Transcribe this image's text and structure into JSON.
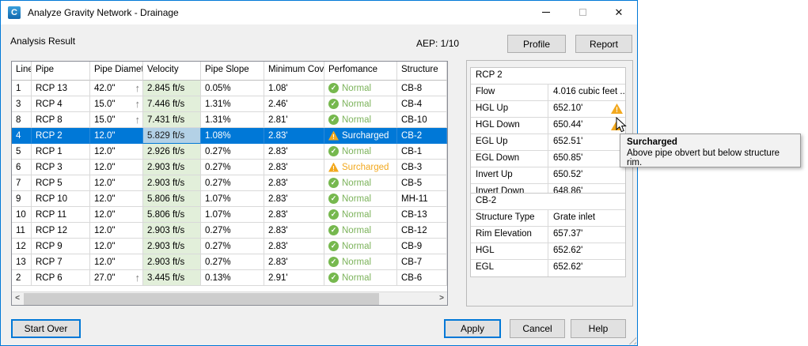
{
  "window": {
    "title": "Analyze Gravity Network - Drainage",
    "icon_letter": "C"
  },
  "header": {
    "analysis_label": "Analysis Result",
    "aep_label": "AEP: 1/10",
    "profile_button": "Profile",
    "report_button": "Report"
  },
  "table": {
    "columns": [
      "Line",
      "Pipe",
      "Pipe Diameter",
      "Velocity",
      "Pipe Slope",
      "Minimum Cover",
      "Perfomance",
      "Structure"
    ],
    "rows": [
      {
        "line": "1",
        "pipe": "RCP 13",
        "diameter": "42.0\"",
        "upsized": true,
        "velocity": "2.845 ft/s",
        "slope": "0.05%",
        "cover": "1.08'",
        "performance": "Normal",
        "status": "normal",
        "structure": "CB-8",
        "selected": false
      },
      {
        "line": "3",
        "pipe": "RCP 4",
        "diameter": "15.0\"",
        "upsized": true,
        "velocity": "7.446 ft/s",
        "slope": "1.31%",
        "cover": "2.46'",
        "performance": "Normal",
        "status": "normal",
        "structure": "CB-4",
        "selected": false
      },
      {
        "line": "8",
        "pipe": "RCP 8",
        "diameter": "15.0\"",
        "upsized": true,
        "velocity": "7.431 ft/s",
        "slope": "1.31%",
        "cover": "2.81'",
        "performance": "Normal",
        "status": "normal",
        "structure": "CB-10",
        "selected": false
      },
      {
        "line": "4",
        "pipe": "RCP 2",
        "diameter": "12.0\"",
        "upsized": false,
        "velocity": "5.829 ft/s",
        "slope": "1.08%",
        "cover": "2.83'",
        "performance": "Surcharged",
        "status": "surcharged",
        "structure": "CB-2",
        "selected": true
      },
      {
        "line": "5",
        "pipe": "RCP 1",
        "diameter": "12.0\"",
        "upsized": false,
        "velocity": "2.926 ft/s",
        "slope": "0.27%",
        "cover": "2.83'",
        "performance": "Normal",
        "status": "normal",
        "structure": "CB-1",
        "selected": false
      },
      {
        "line": "6",
        "pipe": "RCP 3",
        "diameter": "12.0\"",
        "upsized": false,
        "velocity": "2.903 ft/s",
        "slope": "0.27%",
        "cover": "2.83'",
        "performance": "Surcharged",
        "status": "surcharged",
        "structure": "CB-3",
        "selected": false
      },
      {
        "line": "7",
        "pipe": "RCP 5",
        "diameter": "12.0\"",
        "upsized": false,
        "velocity": "2.903 ft/s",
        "slope": "0.27%",
        "cover": "2.83'",
        "performance": "Normal",
        "status": "normal",
        "structure": "CB-5",
        "selected": false
      },
      {
        "line": "9",
        "pipe": "RCP 10",
        "diameter": "12.0\"",
        "upsized": false,
        "velocity": "5.806 ft/s",
        "slope": "1.07%",
        "cover": "2.83'",
        "performance": "Normal",
        "status": "normal",
        "structure": "MH-11",
        "selected": false
      },
      {
        "line": "10",
        "pipe": "RCP 11",
        "diameter": "12.0\"",
        "upsized": false,
        "velocity": "5.806 ft/s",
        "slope": "1.07%",
        "cover": "2.83'",
        "performance": "Normal",
        "status": "normal",
        "structure": "CB-13",
        "selected": false
      },
      {
        "line": "11",
        "pipe": "RCP 12",
        "diameter": "12.0\"",
        "upsized": false,
        "velocity": "2.903 ft/s",
        "slope": "0.27%",
        "cover": "2.83'",
        "performance": "Normal",
        "status": "normal",
        "structure": "CB-12",
        "selected": false
      },
      {
        "line": "12",
        "pipe": "RCP 9",
        "diameter": "12.0\"",
        "upsized": false,
        "velocity": "2.903 ft/s",
        "slope": "0.27%",
        "cover": "2.83'",
        "performance": "Normal",
        "status": "normal",
        "structure": "CB-9",
        "selected": false
      },
      {
        "line": "13",
        "pipe": "RCP 7",
        "diameter": "12.0\"",
        "upsized": false,
        "velocity": "2.903 ft/s",
        "slope": "0.27%",
        "cover": "2.83'",
        "performance": "Normal",
        "status": "normal",
        "structure": "CB-7",
        "selected": false
      },
      {
        "line": "2",
        "pipe": "RCP 6",
        "diameter": "27.0\"",
        "upsized": true,
        "velocity": "3.445 ft/s",
        "slope": "0.13%",
        "cover": "2.91'",
        "performance": "Normal",
        "status": "normal",
        "structure": "CB-6",
        "selected": false
      }
    ]
  },
  "details": {
    "pipe_panel": {
      "title": "RCP 2",
      "rows": [
        {
          "label": "Flow",
          "value": "4.016 cubic feet ...",
          "warning": false
        },
        {
          "label": "HGL Up",
          "value": "652.10'",
          "warning": true
        },
        {
          "label": "HGL Down",
          "value": "650.44'",
          "warning": true
        },
        {
          "label": "EGL Up",
          "value": "652.51'",
          "warning": false
        },
        {
          "label": "EGL Down",
          "value": "650.85'",
          "warning": false
        },
        {
          "label": "Invert Up",
          "value": "650.52'",
          "warning": false
        },
        {
          "label": "Invert Down",
          "value": "648.86'",
          "warning": false
        }
      ]
    },
    "structure_panel": {
      "title": "CB-2",
      "rows": [
        {
          "label": "Structure Type",
          "value": "Grate inlet",
          "warning": false
        },
        {
          "label": "Rim Elevation",
          "value": "657.37'",
          "warning": false
        },
        {
          "label": "HGL",
          "value": "652.62'",
          "warning": false
        },
        {
          "label": "EGL",
          "value": "652.62'",
          "warning": false
        }
      ]
    }
  },
  "tooltip": {
    "title": "Surcharged",
    "body": "Above pipe obvert but below structure rim."
  },
  "footer": {
    "start_over_button": "Start Over",
    "apply_button": "Apply",
    "cancel_button": "Cancel",
    "help_button": "Help"
  },
  "scrollbar": {
    "left_arrow": "<",
    "right_arrow": ">"
  },
  "colors": {
    "accent": "#0078d7",
    "normal_green": "#7cb35b",
    "normal_green_icon": "#76b84e",
    "warning_orange": "#f2a81d",
    "velocity_green": "#e2efda",
    "velocity_selected": "#b3d1e6"
  }
}
